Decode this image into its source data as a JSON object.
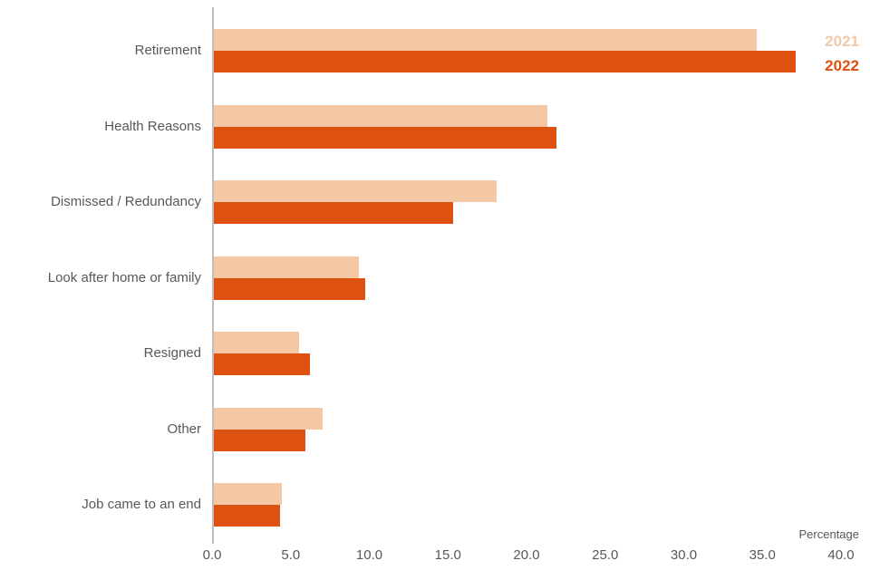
{
  "chart_data": {
    "type": "bar",
    "orientation": "horizontal",
    "title": "",
    "xlabel": "Percentage",
    "xlim": [
      0,
      40
    ],
    "xticks": [
      "0.0",
      "5.0",
      "10.0",
      "15.0",
      "20.0",
      "25.0",
      "30.0",
      "35.0",
      "40.0"
    ],
    "grid": false,
    "legend_position": "top-right",
    "categories": [
      "Retirement",
      "Health Reasons",
      "Dismissed / Redundancy",
      "Look after home or family",
      "Resigned",
      "Other",
      "Job came to an end"
    ],
    "series": [
      {
        "name": "2021",
        "color": "#f4c7a5",
        "values": [
          34.5,
          21.2,
          18.0,
          9.2,
          5.4,
          6.9,
          4.3
        ]
      },
      {
        "name": "2022",
        "color": "#dd5111",
        "values": [
          37.0,
          21.8,
          15.2,
          9.6,
          6.1,
          5.8,
          4.2
        ]
      }
    ]
  }
}
